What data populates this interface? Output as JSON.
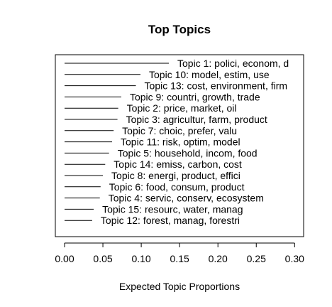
{
  "chart_data": {
    "type": "bar",
    "title": "Top Topics",
    "xlabel": "Expected Topic Proportions",
    "ylabel": "",
    "xlim": [
      -0.01,
      0.31
    ],
    "xticks": [
      "0.00",
      "0.05",
      "0.10",
      "0.15",
      "0.20",
      "0.25",
      "0.30"
    ],
    "xtick_values": [
      0,
      0.05,
      0.1,
      0.15,
      0.2,
      0.25,
      0.3
    ],
    "categories": [
      "Topic 1: polici, econom, d",
      "Topic 10: model, estim, use",
      "Topic 13: cost, environment, firm",
      "Topic 9: countri, growth, trade",
      "Topic 2: price, market, oil",
      "Topic 3: agricultur, farm, product",
      "Topic 7: choic, prefer, valu",
      "Topic 11: risk, optim, model",
      "Topic 5: household, incom, food",
      "Topic 14: emiss, carbon, cost",
      "Topic 8: energi, product, effici",
      "Topic 6: food, consum, product",
      "Topic 4: servic, conserv, ecosystem",
      "Topic 15: resourc, water, manag",
      "Topic 12: forest, manag, forestri"
    ],
    "values": [
      0.136,
      0.099,
      0.093,
      0.074,
      0.07,
      0.069,
      0.064,
      0.062,
      0.058,
      0.053,
      0.05,
      0.047,
      0.046,
      0.038,
      0.036
    ]
  }
}
